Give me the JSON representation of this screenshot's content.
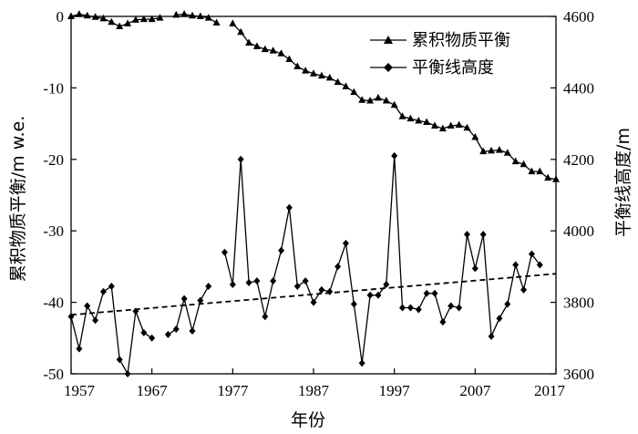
{
  "chart_data": {
    "type": "line",
    "xlabel": "年份",
    "ylabel_left": "累积物质平衡/m w.e.",
    "ylabel_right": "平衡线高度/m",
    "xlim": [
      1957,
      2017
    ],
    "ylim_left": [
      -50,
      0
    ],
    "ylim_right": [
      3600,
      4600
    ],
    "xticks": [
      "1957",
      "1967",
      "1977",
      "1987",
      "1997",
      "2007",
      "2017"
    ],
    "yticks_left": [
      "0",
      "-10",
      "-20",
      "-30",
      "-40",
      "-50"
    ],
    "yticks_right": [
      "4600",
      "4400",
      "4200",
      "4000",
      "3800",
      "3600"
    ],
    "legend_position": "top-right",
    "grid": false,
    "series": [
      {
        "name": "累积物质平衡",
        "axis": "left",
        "marker": "triangle",
        "points": [
          [
            1957,
            0.0
          ],
          [
            1958,
            0.3
          ],
          [
            1959,
            0.1
          ],
          [
            1960,
            -0.1
          ],
          [
            1961,
            -0.3
          ],
          [
            1962,
            -0.8
          ],
          [
            1963,
            -1.4
          ],
          [
            1964,
            -1.0
          ],
          [
            1965,
            -0.5
          ],
          [
            1966,
            -0.4
          ],
          [
            1967,
            -0.4
          ],
          [
            1968,
            -0.2
          ],
          null,
          [
            1970,
            0.2
          ],
          [
            1971,
            0.3
          ],
          [
            1972,
            0.1
          ],
          [
            1973,
            0.0
          ],
          [
            1974,
            -0.2
          ],
          [
            1975,
            -0.9
          ],
          null,
          [
            1977,
            -1.0
          ],
          [
            1978,
            -2.2
          ],
          [
            1979,
            -3.7
          ],
          [
            1980,
            -4.2
          ],
          [
            1981,
            -4.6
          ],
          [
            1982,
            -4.8
          ],
          [
            1983,
            -5.2
          ],
          [
            1984,
            -6.0
          ],
          [
            1985,
            -7.0
          ],
          [
            1986,
            -7.6
          ],
          [
            1987,
            -8.0
          ],
          [
            1988,
            -8.3
          ],
          [
            1989,
            -8.6
          ],
          [
            1990,
            -9.2
          ],
          [
            1991,
            -9.8
          ],
          [
            1992,
            -10.6
          ],
          [
            1993,
            -11.7
          ],
          [
            1994,
            -11.8
          ],
          [
            1995,
            -11.4
          ],
          [
            1996,
            -11.8
          ],
          [
            1997,
            -12.4
          ],
          [
            1998,
            -14.0
          ],
          [
            1999,
            -14.3
          ],
          [
            2000,
            -14.6
          ],
          [
            2001,
            -14.8
          ],
          [
            2002,
            -15.3
          ],
          [
            2003,
            -15.7
          ],
          [
            2004,
            -15.3
          ],
          [
            2005,
            -15.2
          ],
          [
            2006,
            -15.6
          ],
          [
            2007,
            -16.9
          ],
          [
            2008,
            -18.9
          ],
          [
            2009,
            -18.8
          ],
          [
            2010,
            -18.7
          ],
          [
            2011,
            -19.1
          ],
          [
            2012,
            -20.3
          ],
          [
            2013,
            -20.7
          ],
          [
            2014,
            -21.7
          ],
          [
            2015,
            -21.7
          ],
          [
            2016,
            -22.6
          ],
          [
            2017,
            -22.8
          ]
        ]
      },
      {
        "name": "平衡线高度",
        "axis": "right",
        "marker": "diamond",
        "points": [
          [
            1957,
            3760
          ],
          [
            1958,
            3670
          ],
          [
            1959,
            3790
          ],
          [
            1960,
            3750
          ],
          [
            1961,
            3830
          ],
          [
            1962,
            3845
          ],
          [
            1963,
            3640
          ],
          [
            1964,
            3600
          ],
          [
            1965,
            3775
          ],
          [
            1966,
            3715
          ],
          [
            1967,
            3700
          ],
          null,
          [
            1969,
            3710
          ],
          [
            1970,
            3725
          ],
          [
            1971,
            3810
          ],
          [
            1972,
            3720
          ],
          [
            1973,
            3805
          ],
          [
            1974,
            3845
          ],
          null,
          [
            1976,
            3940
          ],
          [
            1977,
            3850
          ],
          [
            1978,
            4200
          ],
          [
            1979,
            3855
          ],
          [
            1980,
            3860
          ],
          [
            1981,
            3760
          ],
          [
            1982,
            3860
          ],
          [
            1983,
            3945
          ],
          [
            1984,
            4065
          ],
          [
            1985,
            3845
          ],
          [
            1986,
            3860
          ],
          [
            1987,
            3800
          ],
          [
            1988,
            3835
          ],
          [
            1989,
            3830
          ],
          [
            1990,
            3900
          ],
          [
            1991,
            3965
          ],
          [
            1992,
            3795
          ],
          [
            1993,
            3630
          ],
          [
            1994,
            3820
          ],
          [
            1995,
            3820
          ],
          [
            1996,
            3850
          ],
          [
            1997,
            4210
          ],
          [
            1998,
            3785
          ],
          [
            1999,
            3785
          ],
          [
            2000,
            3780
          ],
          [
            2001,
            3825
          ],
          [
            2002,
            3825
          ],
          [
            2003,
            3745
          ],
          [
            2004,
            3790
          ],
          [
            2005,
            3785
          ],
          [
            2006,
            3990
          ],
          [
            2007,
            3895
          ],
          [
            2008,
            3990
          ],
          [
            2009,
            3705
          ],
          [
            2010,
            3755
          ],
          [
            2011,
            3795
          ],
          [
            2012,
            3905
          ],
          [
            2013,
            3835
          ],
          [
            2014,
            3935
          ],
          [
            2015,
            3905
          ]
        ]
      }
    ],
    "trendline": {
      "axis": "right",
      "style": "dashed",
      "points": [
        [
          1957,
          3765
        ],
        [
          2017,
          3880
        ]
      ]
    }
  }
}
